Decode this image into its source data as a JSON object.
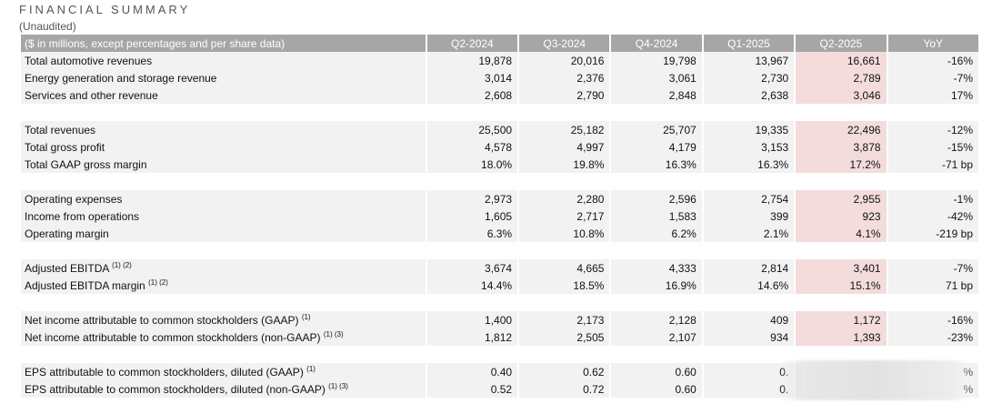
{
  "header": {
    "title": "FINANCIAL SUMMARY",
    "subtitle": "(Unaudited)"
  },
  "table": {
    "label_header": "($ in millions, except percentages and per share data)",
    "columns": [
      "Q2-2024",
      "Q3-2024",
      "Q4-2024",
      "Q1-2025",
      "Q2-2025",
      "YoY"
    ],
    "rows": [
      {
        "label": "Total automotive revenues",
        "sup": "",
        "values": [
          "19,878",
          "20,016",
          "19,798",
          "13,967",
          "16,661",
          "-16%"
        ]
      },
      {
        "label": "Energy generation and storage revenue",
        "sup": "",
        "values": [
          "3,014",
          "2,376",
          "3,061",
          "2,730",
          "2,789",
          "-7%"
        ]
      },
      {
        "label": "Services and other revenue",
        "sup": "",
        "values": [
          "2,608",
          "2,790",
          "2,848",
          "2,638",
          "3,046",
          "17%"
        ]
      },
      {
        "label": "Total revenues",
        "sup": "",
        "values": [
          "25,500",
          "25,182",
          "25,707",
          "19,335",
          "22,496",
          "-12%"
        ]
      },
      {
        "label": "Total gross profit",
        "sup": "",
        "values": [
          "4,578",
          "4,997",
          "4,179",
          "3,153",
          "3,878",
          "-15%"
        ]
      },
      {
        "label": "Total GAAP gross margin",
        "sup": "",
        "values": [
          "18.0%",
          "19.8%",
          "16.3%",
          "16.3%",
          "17.2%",
          "-71 bp"
        ]
      },
      {
        "label": "Operating expenses",
        "sup": "",
        "values": [
          "2,973",
          "2,280",
          "2,596",
          "2,754",
          "2,955",
          "-1%"
        ]
      },
      {
        "label": "Income from operations",
        "sup": "",
        "values": [
          "1,605",
          "2,717",
          "1,583",
          "399",
          "923",
          "-42%"
        ]
      },
      {
        "label": "Operating margin",
        "sup": "",
        "values": [
          "6.3%",
          "10.8%",
          "6.2%",
          "2.1%",
          "4.1%",
          "-219 bp"
        ]
      },
      {
        "label": "Adjusted EBITDA",
        "sup": "(1) (2)",
        "values": [
          "3,674",
          "4,665",
          "4,333",
          "2,814",
          "3,401",
          "-7%"
        ]
      },
      {
        "label": "Adjusted EBITDA margin",
        "sup": "(1) (2)",
        "values": [
          "14.4%",
          "18.5%",
          "16.9%",
          "14.6%",
          "15.1%",
          "71 bp"
        ]
      },
      {
        "label": "Net income attributable to common stockholders (GAAP)",
        "sup": "(1)",
        "values": [
          "1,400",
          "2,173",
          "2,128",
          "409",
          "1,172",
          "-16%"
        ]
      },
      {
        "label": "Net income attributable to common stockholders (non-GAAP)",
        "sup": "(1) (3)",
        "values": [
          "1,812",
          "2,505",
          "2,107",
          "934",
          "1,393",
          "-23%"
        ]
      },
      {
        "label": "EPS attributable to common stockholders, diluted (GAAP)",
        "sup": "(1)",
        "values": [
          "0.40",
          "0.62",
          "0.60",
          "0.",
          "",
          "%"
        ]
      },
      {
        "label": "EPS attributable to common stockholders, diluted (non-GAAP)",
        "sup": "(1) (3)",
        "values": [
          "0.52",
          "0.72",
          "0.60",
          "0.",
          "",
          "%"
        ]
      }
    ]
  }
}
